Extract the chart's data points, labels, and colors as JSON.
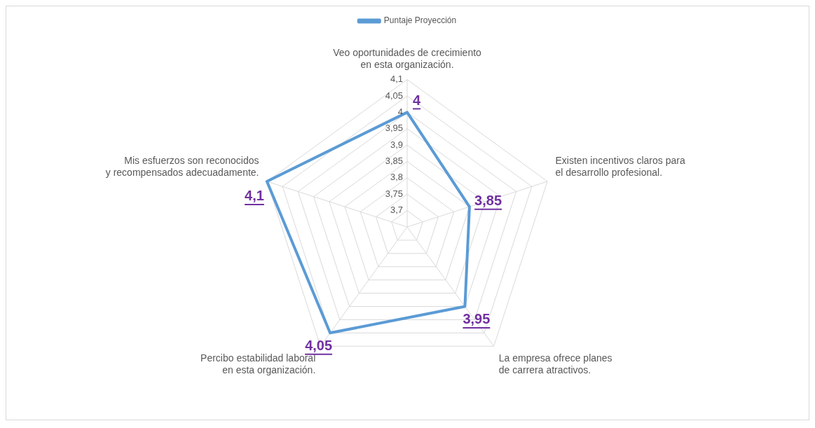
{
  "chart_data": {
    "type": "radar",
    "categories": [
      "Veo oportunidades de crecimiento en esta organización.",
      "Existen incentivos claros para el desarrollo profesional.",
      "La empresa ofrece planes de carrera atractivos.",
      "Percibo estabilidad laboral en esta organización.",
      "Mis esfuerzos son reconocidos y recompensados adecuadamente."
    ],
    "series": [
      {
        "name": "Puntaje Proyección",
        "color": "#5b9bd5",
        "values": [
          4,
          3.85,
          3.95,
          4.05,
          4.1
        ],
        "value_labels": [
          "4",
          "3,85",
          "3,95",
          "4,05",
          "4,1"
        ]
      }
    ],
    "ylim": [
      3.65,
      4.1
    ],
    "yticks": [
      {
        "value": 3.7,
        "label": "3,7"
      },
      {
        "value": 3.75,
        "label": "3,75"
      },
      {
        "value": 3.8,
        "label": "3,8"
      },
      {
        "value": 3.85,
        "label": "3,85"
      },
      {
        "value": 3.9,
        "label": "3,9"
      },
      {
        "value": 3.95,
        "label": "3,95"
      },
      {
        "value": 4,
        "label": "4"
      },
      {
        "value": 4.05,
        "label": "4,05"
      },
      {
        "value": 4.1,
        "label": "4,1"
      }
    ],
    "grid": true,
    "legend": "top",
    "marker": "none"
  }
}
